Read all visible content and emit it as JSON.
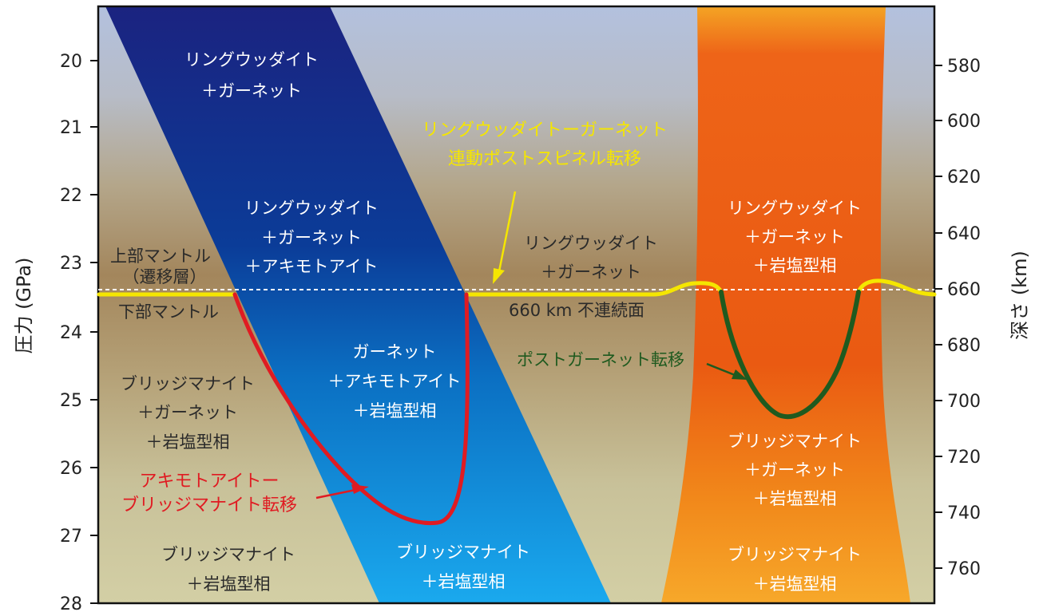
{
  "axes": {
    "left_title": "圧力 (GPa)",
    "right_title": "深さ (km)",
    "left_ticks": [
      "20",
      "21",
      "22",
      "23",
      "24",
      "25",
      "26",
      "27",
      "28"
    ],
    "right_ticks": [
      "580",
      "600",
      "620",
      "640",
      "660",
      "680",
      "700",
      "720",
      "740",
      "760"
    ]
  },
  "labels": {
    "ringwoodite_garnet_top": [
      "リングウッダイト",
      "＋ガーネット"
    ],
    "slab_upper": [
      "リングウッダイト",
      "＋ガーネット",
      "＋アキモトアイト"
    ],
    "upper_mantle": [
      "上部マントル",
      "（遷移層）"
    ],
    "lower_mantle": "下部マントル",
    "post_spinel_transition": [
      "リングウッダイトーガーネット",
      "連動ポストスピネル転移"
    ],
    "center_upper": [
      "リングウッダイト",
      "＋ガーネット"
    ],
    "discontinuity": "660 km 不連続面",
    "plume_upper": [
      "リングウッダイト",
      "＋ガーネット",
      "＋岩塩型相"
    ],
    "slab_middle": [
      "ガーネット",
      "＋アキモトアイト",
      "＋岩塩型相"
    ],
    "post_garnet_transition": "ポストガーネット転移",
    "left_lower": [
      "ブリッジマナイト",
      "＋ガーネット",
      "＋岩塩型相"
    ],
    "plume_middle": [
      "ブリッジマナイト",
      "＋ガーネット",
      "＋岩塩型相"
    ],
    "akimotoite_transition": [
      "アキモトアイトー",
      "ブリッジマナイト転移"
    ],
    "bottom_left": [
      "ブリッジマナイト",
      "＋岩塩型相"
    ],
    "bottom_center": [
      "ブリッジマナイト",
      "＋岩塩型相"
    ],
    "bottom_right": [
      "ブリッジマナイト",
      "＋岩塩型相"
    ]
  },
  "colors": {
    "slab_dark": "#1b2a80",
    "slab_light": "#1aa6ec",
    "plume_top": "#ea5a12",
    "plume_bottom": "#f7a11d",
    "bg_top": "#b3c1de",
    "bg_mid": "#a68a60",
    "bg_bottom": "#cec9a0",
    "boundary_yellow": "#f5e600",
    "transition_red": "#e01b22",
    "transition_green": "#1f5a1f"
  }
}
